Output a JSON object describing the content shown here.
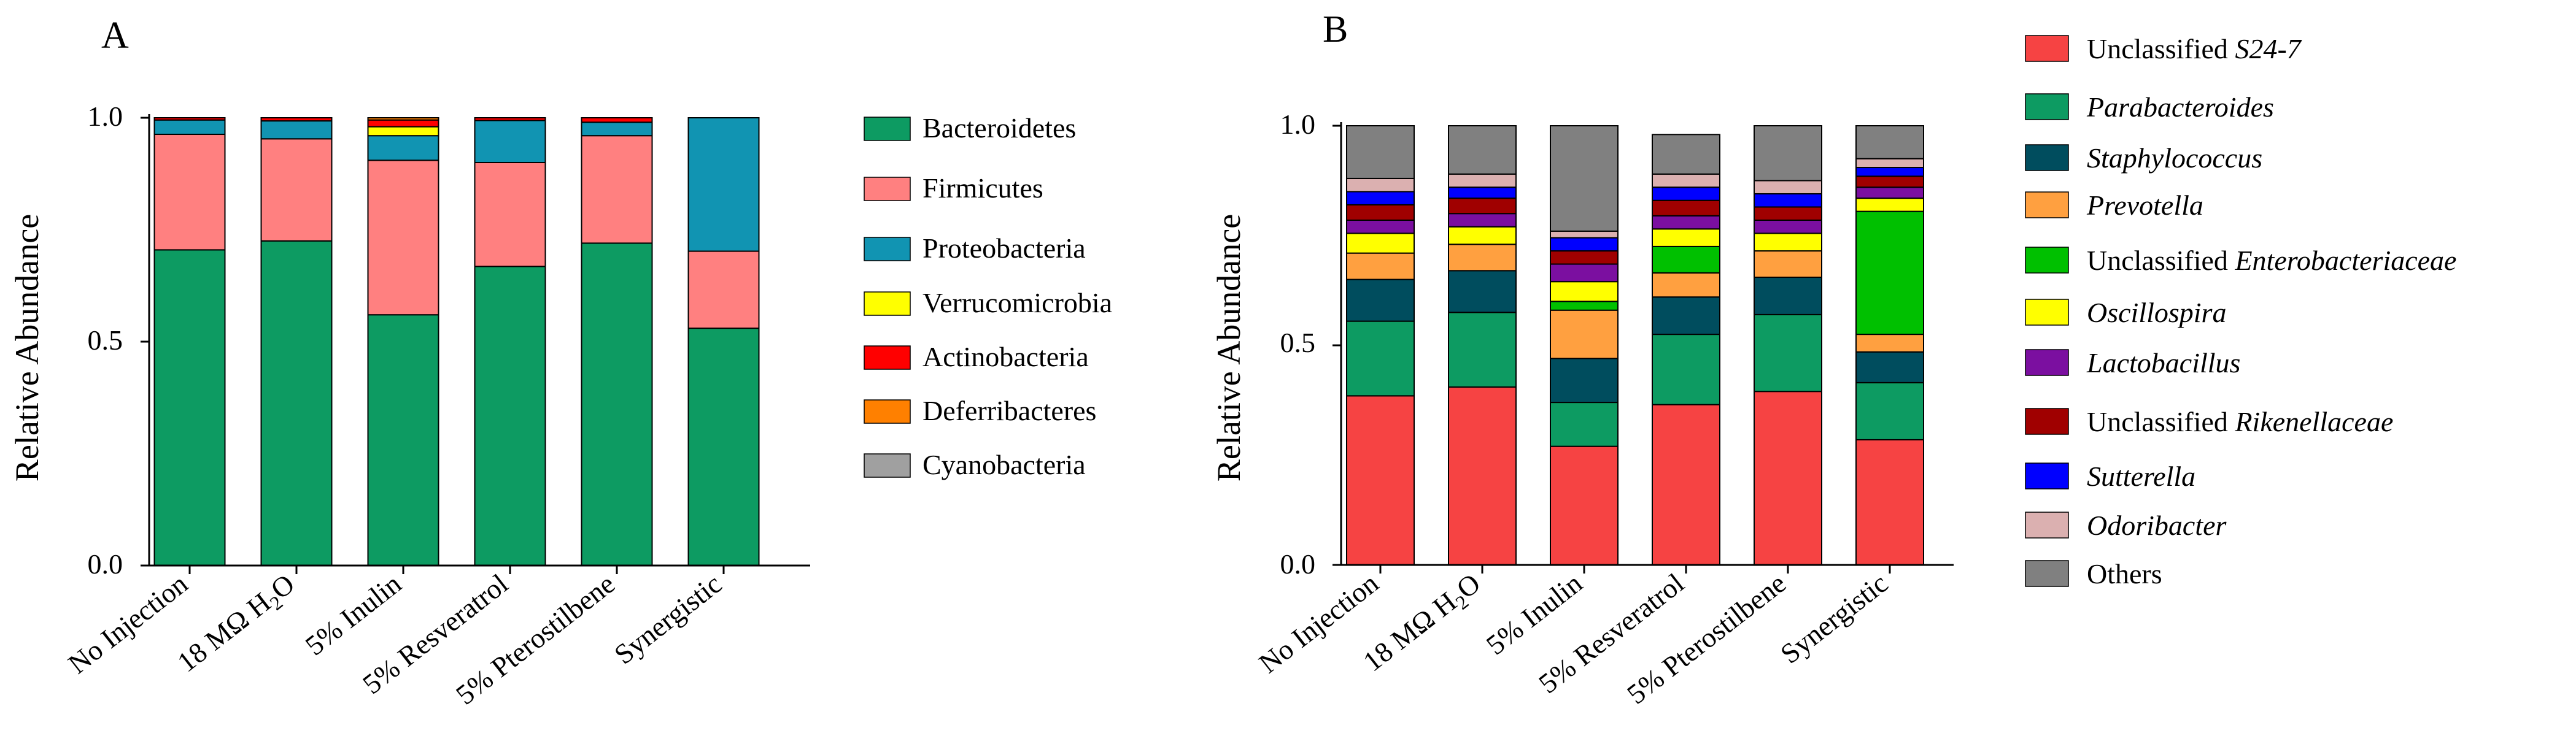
{
  "chart_data": [
    {
      "type": "bar",
      "stacked": true,
      "panel_label": "A",
      "ylabel": "Relative Abundance",
      "ylim": [
        0,
        1
      ],
      "yticks": [
        "0.0",
        "0.5",
        "1.0"
      ],
      "categories": [
        "No Injection",
        "18 MΩ H₂O",
        "5% Inulin",
        "5% Resveratrol",
        "5% Pterostilbene",
        "Synergistic"
      ],
      "legend_position": "right",
      "series": [
        {
          "name": "Bacteroidetes",
          "color": "#0d9b62",
          "values": [
            0.705,
            0.725,
            0.56,
            0.668,
            0.72,
            0.53
          ]
        },
        {
          "name": "Firmicutes",
          "color": "#ff8080",
          "values": [
            0.258,
            0.228,
            0.345,
            0.232,
            0.24,
            0.172
          ]
        },
        {
          "name": "Proteobacteria",
          "color": "#1194b2",
          "values": [
            0.032,
            0.04,
            0.055,
            0.094,
            0.03,
            0.298
          ]
        },
        {
          "name": "Verrucomicrobia",
          "color": "#ffff00",
          "values": [
            0.0,
            0.0,
            0.02,
            0.0,
            0.0,
            0.0
          ]
        },
        {
          "name": "Actinobacteria",
          "color": "#ff0000",
          "values": [
            0.005,
            0.007,
            0.015,
            0.006,
            0.01,
            0.0
          ]
        },
        {
          "name": "Deferribacteres",
          "color": "#ff8000",
          "values": [
            0.0,
            0.0,
            0.005,
            0.0,
            0.0,
            0.0
          ]
        },
        {
          "name": "Cyanobacteria",
          "color": "#a0a0a0",
          "values": [
            0.0,
            0.0,
            0.0,
            0.0,
            0.0,
            0.0
          ]
        }
      ]
    },
    {
      "type": "bar",
      "stacked": true,
      "panel_label": "B",
      "ylabel": "Relative Abundance",
      "ylim": [
        0,
        1
      ],
      "yticks": [
        "0.0",
        "0.5",
        "1.0"
      ],
      "categories": [
        "No Injection",
        "18 MΩ H₂O",
        "5% Inulin",
        "5% Resveratrol",
        "5% Pterostilbene",
        "Synergistic"
      ],
      "legend_position": "right",
      "series": [
        {
          "name": "Unclassified S24-7",
          "prefix": "Unclassified ",
          "italic": "S24-7",
          "color": "#f64343",
          "values": [
            0.385,
            0.405,
            0.27,
            0.365,
            0.395,
            0.285
          ]
        },
        {
          "name": "Parabacteroides",
          "prefix": "",
          "italic": "Parabacteroides",
          "color": "#0d9b62",
          "values": [
            0.17,
            0.17,
            0.1,
            0.16,
            0.175,
            0.13
          ]
        },
        {
          "name": "Staphylococcus",
          "prefix": "",
          "italic": "Staphylococcus",
          "color": "#004d5e",
          "values": [
            0.095,
            0.095,
            0.1,
            0.085,
            0.085,
            0.07
          ]
        },
        {
          "name": "Prevotella",
          "prefix": "",
          "italic": "Prevotella",
          "color": "#ffa040",
          "values": [
            0.06,
            0.06,
            0.11,
            0.055,
            0.06,
            0.04
          ]
        },
        {
          "name": "Unclassified Enterobacteriaceae",
          "prefix": "Unclassified ",
          "italic": "Enterobacteriaceae",
          "color": "#00c000",
          "values": [
            0.0,
            0.0,
            0.02,
            0.06,
            0.0,
            0.28
          ]
        },
        {
          "name": "Oscillospira",
          "prefix": "",
          "italic": "Oscillospira",
          "color": "#ffff00",
          "values": [
            0.045,
            0.04,
            0.045,
            0.04,
            0.04,
            0.03
          ]
        },
        {
          "name": "Lactobacillus",
          "prefix": "",
          "italic": "Lactobacillus",
          "color": "#7b0fa0",
          "values": [
            0.03,
            0.03,
            0.04,
            0.03,
            0.03,
            0.025
          ]
        },
        {
          "name": "Unclassified Rikenellaceae",
          "prefix": "Unclassified ",
          "italic": "Rikenellaceae",
          "color": "#a00000",
          "values": [
            0.035,
            0.035,
            0.03,
            0.035,
            0.03,
            0.025
          ]
        },
        {
          "name": "Sutterella",
          "prefix": "",
          "italic": "Sutterella",
          "color": "#0000ff",
          "values": [
            0.03,
            0.025,
            0.03,
            0.03,
            0.03,
            0.02
          ]
        },
        {
          "name": "Odoribacter",
          "prefix": "",
          "italic": "Odoribacter",
          "color": "#dbb0b0",
          "values": [
            0.03,
            0.03,
            0.015,
            0.03,
            0.03,
            0.02
          ]
        },
        {
          "name": "Others",
          "prefix": "Others",
          "italic": "",
          "color": "#808080",
          "values": [
            0.12,
            0.11,
            0.24,
            0.09,
            0.125,
            0.075
          ]
        }
      ]
    }
  ]
}
